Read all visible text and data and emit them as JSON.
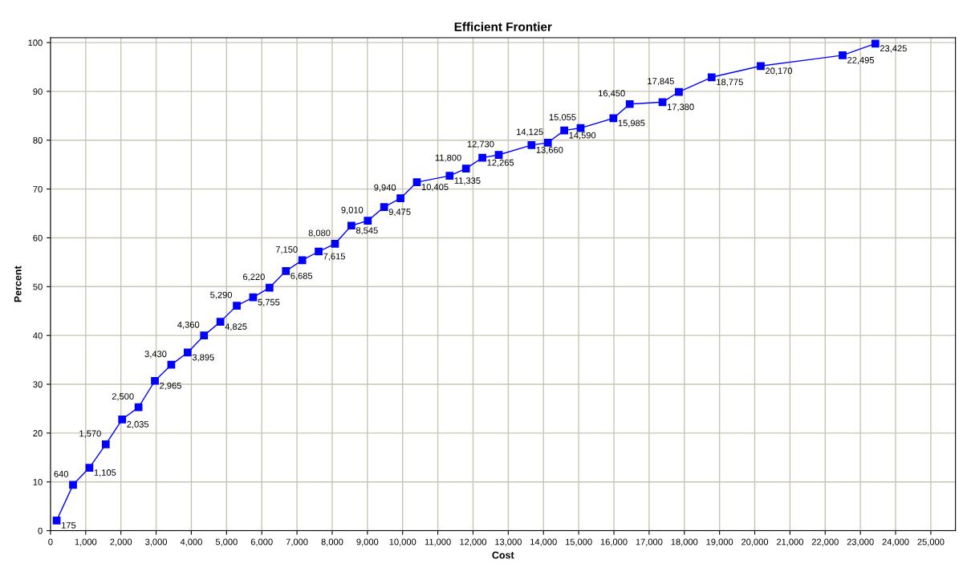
{
  "chart_data": {
    "type": "line",
    "title": "Efficient Frontier",
    "xlabel": "Cost",
    "ylabel": "Percent",
    "x": [
      175,
      640,
      1105,
      1570,
      2035,
      2500,
      2965,
      3430,
      3895,
      4360,
      4825,
      5290,
      5755,
      6220,
      6685,
      7150,
      7615,
      8080,
      8545,
      9010,
      9475,
      9940,
      10405,
      11335,
      11800,
      12265,
      12730,
      13660,
      14125,
      14590,
      15055,
      15985,
      16450,
      17380,
      17845,
      18775,
      20170,
      22495,
      23425
    ],
    "series": [
      {
        "color": "#0000ff",
        "values": [
          2.1,
          9.4,
          12.9,
          17.7,
          22.8,
          25.3,
          30.7,
          34.0,
          36.5,
          40.0,
          42.8,
          46.1,
          47.8,
          49.8,
          53.2,
          55.4,
          57.2,
          58.8,
          62.5,
          63.5,
          66.3,
          68.1,
          71.4,
          72.7,
          74.2,
          76.4,
          77.0,
          79.0,
          79.5,
          82.0,
          82.5,
          84.5,
          87.4,
          87.8,
          89.9,
          92.9,
          95.2,
          97.4,
          99.8
        ]
      }
    ],
    "annotations": [
      {
        "text": "175",
        "x": 175,
        "y": 2.1
      },
      {
        "text": "640",
        "x": 640,
        "y": 9.4
      },
      {
        "text": "1,105",
        "x": 1105,
        "y": 12.9
      },
      {
        "text": "1,570",
        "x": 1570,
        "y": 17.7
      },
      {
        "text": "2,035",
        "x": 2035,
        "y": 22.8
      },
      {
        "text": "2,500",
        "x": 2500,
        "y": 25.3
      },
      {
        "text": "2,965",
        "x": 2965,
        "y": 30.7
      },
      {
        "text": "3,430",
        "x": 3430,
        "y": 34.0
      },
      {
        "text": "3,895",
        "x": 3895,
        "y": 36.5
      },
      {
        "text": "4,360",
        "x": 4360,
        "y": 40.0
      },
      {
        "text": "4,825",
        "x": 4825,
        "y": 42.8
      },
      {
        "text": "5,290",
        "x": 5290,
        "y": 46.1
      },
      {
        "text": "5,755",
        "x": 5755,
        "y": 47.8
      },
      {
        "text": "6,220",
        "x": 6220,
        "y": 49.8
      },
      {
        "text": "6,685",
        "x": 6685,
        "y": 53.2
      },
      {
        "text": "7,150",
        "x": 7150,
        "y": 55.4
      },
      {
        "text": "7,615",
        "x": 7615,
        "y": 57.2
      },
      {
        "text": "8,080",
        "x": 8080,
        "y": 58.8
      },
      {
        "text": "8,545",
        "x": 8545,
        "y": 62.5
      },
      {
        "text": "9,010",
        "x": 9010,
        "y": 63.5
      },
      {
        "text": "9,475",
        "x": 9475,
        "y": 66.3
      },
      {
        "text": "9,940",
        "x": 9940,
        "y": 68.1
      },
      {
        "text": "10,405",
        "x": 10405,
        "y": 71.4
      },
      {
        "text": "11,335",
        "x": 11335,
        "y": 72.7
      },
      {
        "text": "11,800",
        "x": 11800,
        "y": 74.2
      },
      {
        "text": "12,265",
        "x": 12265,
        "y": 76.4
      },
      {
        "text": "12,730",
        "x": 12730,
        "y": 77.0
      },
      {
        "text": "13,660",
        "x": 13660,
        "y": 79.0
      },
      {
        "text": "14,125",
        "x": 14125,
        "y": 79.5
      },
      {
        "text": "14,590",
        "x": 14590,
        "y": 82.0
      },
      {
        "text": "15,055",
        "x": 15055,
        "y": 82.5
      },
      {
        "text": "15,985",
        "x": 15985,
        "y": 84.5
      },
      {
        "text": "16,450",
        "x": 16450,
        "y": 87.4
      },
      {
        "text": "17,380",
        "x": 17380,
        "y": 87.8
      },
      {
        "text": "17,845",
        "x": 17845,
        "y": 89.9
      },
      {
        "text": "18,775",
        "x": 18775,
        "y": 92.9
      },
      {
        "text": "20,170",
        "x": 20170,
        "y": 95.2
      },
      {
        "text": "22,495",
        "x": 22495,
        "y": 97.4
      },
      {
        "text": "23,425",
        "x": 23425,
        "y": 99.8
      }
    ],
    "xlim": [
      0,
      25700
    ],
    "ylim": [
      0,
      101
    ],
    "xticks": [
      0,
      {
        "value": 1000,
        "label": "1,000"
      },
      {
        "value": 2000,
        "label": "2,000"
      },
      {
        "value": 3000,
        "label": "3,000"
      },
      {
        "value": 4000,
        "label": "4,000"
      },
      {
        "value": 5000,
        "label": "5,000"
      },
      {
        "value": 6000,
        "label": "6,000"
      },
      {
        "value": 7000,
        "label": "7,000"
      },
      {
        "value": 8000,
        "label": "8,000"
      },
      {
        "value": 9000,
        "label": "9,000"
      },
      {
        "value": 10000,
        "label": "10,000"
      },
      {
        "value": 11000,
        "label": "11,000"
      },
      {
        "value": 12000,
        "label": "12,000"
      },
      {
        "value": 13000,
        "label": "13,000"
      },
      {
        "value": 14000,
        "label": "14,000"
      },
      {
        "value": 15000,
        "label": "15,000"
      },
      {
        "value": 16000,
        "label": "16,000"
      },
      {
        "value": 17000,
        "label": "17,000"
      },
      {
        "value": 18000,
        "label": "18,000"
      },
      {
        "value": 19000,
        "label": "19,000"
      },
      {
        "value": 20000,
        "label": "20,000"
      },
      {
        "value": 21000,
        "label": "21,000"
      },
      {
        "value": 22000,
        "label": "22,000"
      },
      {
        "value": 23000,
        "label": "23,000"
      },
      {
        "value": 24000,
        "label": "24,000"
      },
      {
        "value": 25000,
        "label": "25,000"
      }
    ],
    "yticks": [
      0,
      10,
      20,
      30,
      40,
      50,
      60,
      70,
      80,
      90,
      100
    ],
    "grid": true,
    "marker": "square",
    "line_style": "solid"
  }
}
